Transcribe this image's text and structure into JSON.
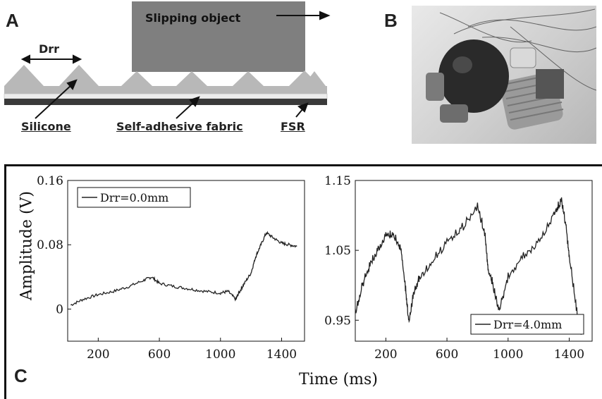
{
  "panels": {
    "a": {
      "letter": "A"
    },
    "b": {
      "letter": "B"
    },
    "c": {
      "letter": "C"
    }
  },
  "schematic": {
    "object_label": "Slipping object",
    "dimension_label": "Drr",
    "silicone_label": "Silicone",
    "fabric_label": "Self-adhesive fabric",
    "fsr_label": "FSR",
    "colors": {
      "object": "#7f7f7f",
      "silicone": "#b8b8b8",
      "fabric": "#ececec",
      "fsr": "#3a3a3a"
    }
  },
  "photo": {
    "description_icon": "robot-hand-photo"
  },
  "shared": {
    "ylabel": "Amplitude (V)",
    "xlabel": "Time (ms)"
  },
  "chart_data": [
    {
      "type": "line",
      "legend": "Drr=0.0mm",
      "legend_position": "top-left",
      "xlim": [
        0,
        1550
      ],
      "ylim": [
        -0.04,
        0.16
      ],
      "xticks": [
        200,
        600,
        1000,
        1400
      ],
      "yticks": [
        0,
        0.08,
        0.16
      ],
      "ytick_labels": [
        "0",
        "0.08",
        "0.16"
      ],
      "x": [
        20,
        100,
        200,
        300,
        400,
        500,
        550,
        600,
        700,
        800,
        900,
        1000,
        1050,
        1100,
        1120,
        1150,
        1200,
        1230,
        1260,
        1300,
        1350,
        1400,
        1450,
        1500
      ],
      "y": [
        0.005,
        0.012,
        0.018,
        0.022,
        0.028,
        0.036,
        0.04,
        0.032,
        0.028,
        0.025,
        0.022,
        0.02,
        0.022,
        0.012,
        0.02,
        0.03,
        0.045,
        0.065,
        0.078,
        0.095,
        0.088,
        0.082,
        0.08,
        0.078
      ]
    },
    {
      "type": "line",
      "legend": "Drr=4.0mm",
      "legend_position": "bottom-right",
      "xlim": [
        0,
        1550
      ],
      "ylim": [
        0.92,
        1.15
      ],
      "xticks": [
        200,
        600,
        1000,
        1400
      ],
      "yticks": [
        0.95,
        1.05,
        1.15
      ],
      "ytick_labels": [
        "0.95",
        "1.05",
        "1.15"
      ],
      "x": [
        0,
        50,
        100,
        150,
        200,
        250,
        300,
        330,
        350,
        380,
        420,
        500,
        600,
        700,
        800,
        850,
        870,
        900,
        940,
        1000,
        1100,
        1200,
        1300,
        1350,
        1380,
        1400,
        1450,
        1480
      ],
      "y": [
        0.96,
        1.0,
        1.03,
        1.05,
        1.07,
        1.07,
        1.05,
        0.99,
        0.945,
        0.985,
        1.01,
        1.03,
        1.06,
        1.08,
        1.11,
        1.07,
        1.02,
        1.0,
        0.96,
        1.01,
        1.04,
        1.06,
        1.1,
        1.12,
        1.08,
        1.04,
        0.96,
        0.93
      ]
    }
  ]
}
